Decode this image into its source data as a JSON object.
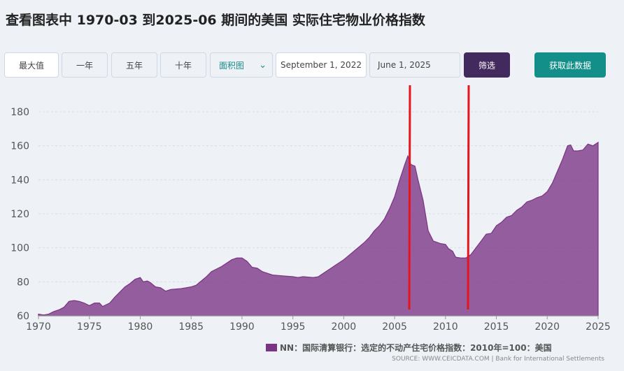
{
  "controls": {
    "range_buttons": [
      "最大值",
      "一年",
      "五年",
      "十年"
    ],
    "chart_type": "面积图",
    "start_date": "September 1, 2022",
    "end_date": "June 1, 2025",
    "filter": "筛选",
    "get_data": "获取此数据"
  },
  "chart_data": {
    "type": "area",
    "title": "查看图表中 1970-03 到2025-06 期间的美国 实际住宅物业价格指数",
    "source": "SOURCE: WWW.CEICDATA.COM | Bank for International Settlements",
    "x": [
      1970.0,
      1970.5,
      1971.0,
      1971.5,
      1972.0,
      1972.5,
      1973.0,
      1973.5,
      1974.0,
      1974.5,
      1975.0,
      1975.5,
      1976.0,
      1976.3,
      1977.0,
      1977.5,
      1978.0,
      1978.5,
      1979.0,
      1979.5,
      1980.0,
      1980.3,
      1980.7,
      1981.0,
      1981.5,
      1982.0,
      1982.5,
      1983.0,
      1984.0,
      1985.0,
      1985.5,
      1986.0,
      1986.5,
      1987.0,
      1988.0,
      1989.0,
      1989.5,
      1990.0,
      1990.5,
      1991.0,
      1991.5,
      1992.0,
      1993.0,
      1994.0,
      1995.0,
      1995.5,
      1996.0,
      1997.0,
      1997.5,
      1998.0,
      1999.0,
      2000.0,
      2001.0,
      2002.0,
      2002.5,
      2003.0,
      2003.5,
      2004.0,
      2004.5,
      2005.0,
      2005.5,
      2006.0,
      2006.3,
      2006.6,
      2007.0,
      2007.3,
      2007.8,
      2008.3,
      2008.8,
      2009.5,
      2010.0,
      2010.3,
      2010.7,
      2011.0,
      2011.5,
      2012.0,
      2012.5,
      2013.0,
      2013.5,
      2014.0,
      2014.5,
      2015.0,
      2015.5,
      2016.0,
      2016.5,
      2017.0,
      2017.5,
      2018.0,
      2018.5,
      2019.0,
      2019.5,
      2020.0,
      2020.5,
      2021.0,
      2021.5,
      2022.0,
      2022.3,
      2022.6,
      2023.0,
      2023.5,
      2024.0,
      2024.5,
      2025.0
    ],
    "series": [
      {
        "name": "NN：国际清算银行：选定的不动产住宅价格指数：2010年=100：美国",
        "color": "#7b3384",
        "values": [
          61,
          60.5,
          61,
          62.5,
          63.5,
          65,
          68.5,
          69,
          68.5,
          67.5,
          66,
          67.5,
          67.5,
          65.5,
          67.5,
          71,
          74,
          77,
          79,
          81.5,
          82.5,
          80,
          80.5,
          79.5,
          77,
          76.5,
          74.5,
          75.5,
          76,
          77,
          78,
          80.5,
          83,
          86,
          89,
          93,
          94,
          94,
          92,
          88.5,
          88,
          86,
          84,
          83.5,
          83,
          82.5,
          83,
          82.5,
          83,
          85,
          89,
          93,
          98,
          103,
          106,
          110,
          113,
          117,
          123,
          130,
          140,
          149,
          154,
          149,
          148,
          140,
          128,
          110,
          104,
          102.5,
          102,
          99.5,
          98,
          94.5,
          94,
          94,
          96,
          100,
          104,
          108,
          108.5,
          113,
          115,
          118,
          119,
          122,
          124,
          127,
          128,
          129.5,
          130.5,
          133,
          138,
          145,
          152,
          160,
          160.5,
          157,
          157,
          157.5,
          161,
          160,
          162
        ]
      }
    ],
    "xlim": [
      1970,
      2025
    ],
    "xticks": [
      1970,
      1975,
      1980,
      1985,
      1990,
      1995,
      2000,
      2005,
      2010,
      2015,
      2020,
      2025
    ],
    "ylim": [
      60,
      180
    ],
    "yticks": [
      60,
      80,
      100,
      120,
      140,
      160,
      180
    ],
    "grid": true
  }
}
